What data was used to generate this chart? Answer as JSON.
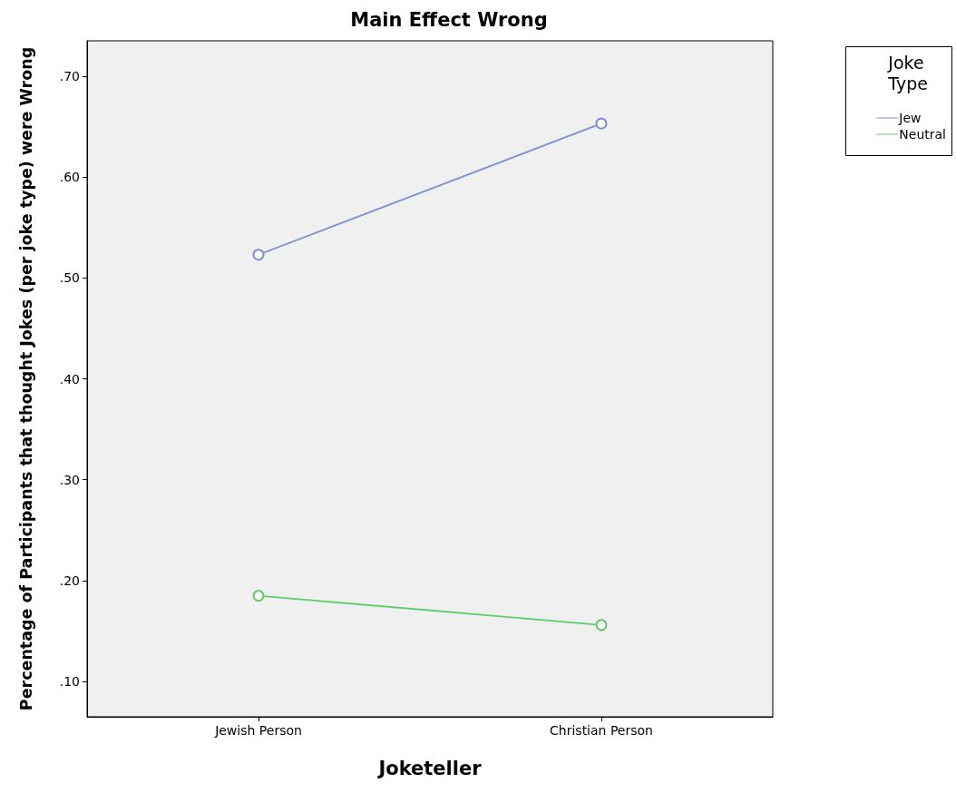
{
  "chart_data": {
    "type": "line",
    "title": "Main Effect Wrong",
    "xlabel": "Joketeller",
    "ylabel": "Percentage of Participants that thought Jokes (per joke type) were Wrong",
    "legend_title": "Joke Type",
    "categories": [
      "Jewish Person",
      "Christian Person"
    ],
    "series": [
      {
        "name": "Jew",
        "color": "#7b8fd6",
        "values": [
          0.523,
          0.653
        ]
      },
      {
        "name": "Neutral",
        "color": "#5fcc6a",
        "values": [
          0.185,
          0.156
        ]
      }
    ],
    "ylim": [
      0.065,
      0.735
    ],
    "yticks": [
      {
        "value": 0.1,
        "label": ".10"
      },
      {
        "value": 0.2,
        "label": ".20"
      },
      {
        "value": 0.3,
        "label": ".30"
      },
      {
        "value": 0.4,
        "label": ".40"
      },
      {
        "value": 0.5,
        "label": ".50"
      },
      {
        "value": 0.6,
        "label": ".60"
      },
      {
        "value": 0.7,
        "label": ".70"
      }
    ],
    "grid": false,
    "legend": "top right",
    "marker": "circle",
    "line_style": "solid"
  }
}
